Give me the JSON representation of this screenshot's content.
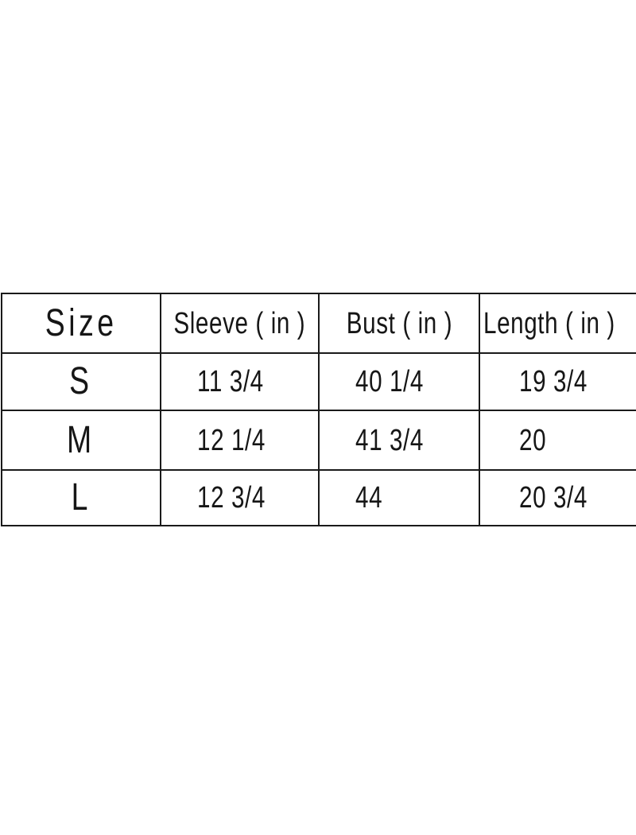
{
  "page": {
    "background": "#ffffff"
  },
  "style": {
    "line_color": "#1a1a1a",
    "text_color": "#161616"
  },
  "chart_data": {
    "type": "table",
    "title": "",
    "columns": [
      "Size",
      "Sleeve ( in )",
      "Bust ( in )",
      "Length ( in )"
    ],
    "rows": [
      [
        "S",
        "11 3/4",
        "40 1/4",
        "19 3/4"
      ],
      [
        "M",
        "12 1/4",
        "41 3/4",
        "20"
      ],
      [
        "L",
        "12 3/4",
        "44",
        "20 3/4"
      ]
    ],
    "layout": {
      "grid": "on",
      "header_row": true,
      "unit": "in"
    }
  }
}
